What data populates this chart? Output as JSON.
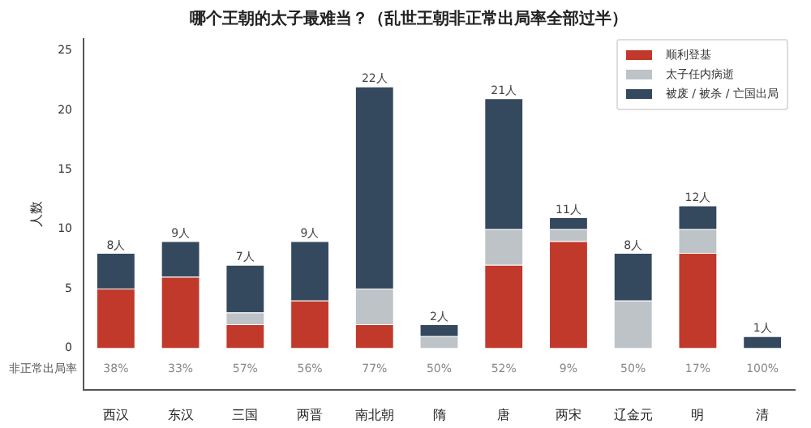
{
  "chart_data": {
    "type": "bar",
    "stacked": true,
    "title": "哪个王朝的太子最难当？（乱世王朝非正常出局率全部过半）",
    "ylabel": "人数",
    "categories": [
      "西汉",
      "东汉",
      "三国",
      "两晋",
      "南北朝",
      "隋",
      "唐",
      "两宋",
      "辽金元",
      "明",
      "清"
    ],
    "series": [
      {
        "name": "顺利登基",
        "color": "#c0392b",
        "values": [
          5,
          6,
          2,
          4,
          2,
          0,
          7,
          9,
          0,
          8,
          0
        ]
      },
      {
        "name": "太子任内病逝",
        "color": "#bdc3c7",
        "values": [
          0,
          0,
          1,
          0,
          3,
          1,
          3,
          1,
          4,
          2,
          0
        ]
      },
      {
        "name": "被废 / 被杀 / 亡国出局",
        "color": "#34495e",
        "values": [
          3,
          3,
          4,
          5,
          17,
          1,
          11,
          1,
          4,
          2,
          1
        ]
      }
    ],
    "totals": [
      "8人",
      "9人",
      "7人",
      "9人",
      "22人",
      "2人",
      "21人",
      "11人",
      "8人",
      "12人",
      "1人"
    ],
    "ylim": [
      -3.5,
      26
    ],
    "yticks": [
      0,
      5,
      10,
      15,
      20,
      25
    ],
    "grid": false,
    "legend": "top right",
    "annotations": [
      "非正常出局率",
      "38%",
      "33%",
      "57%",
      "56%",
      "77%",
      "50%",
      "52%",
      "9%",
      "50%",
      "17%",
      "100%"
    ]
  }
}
